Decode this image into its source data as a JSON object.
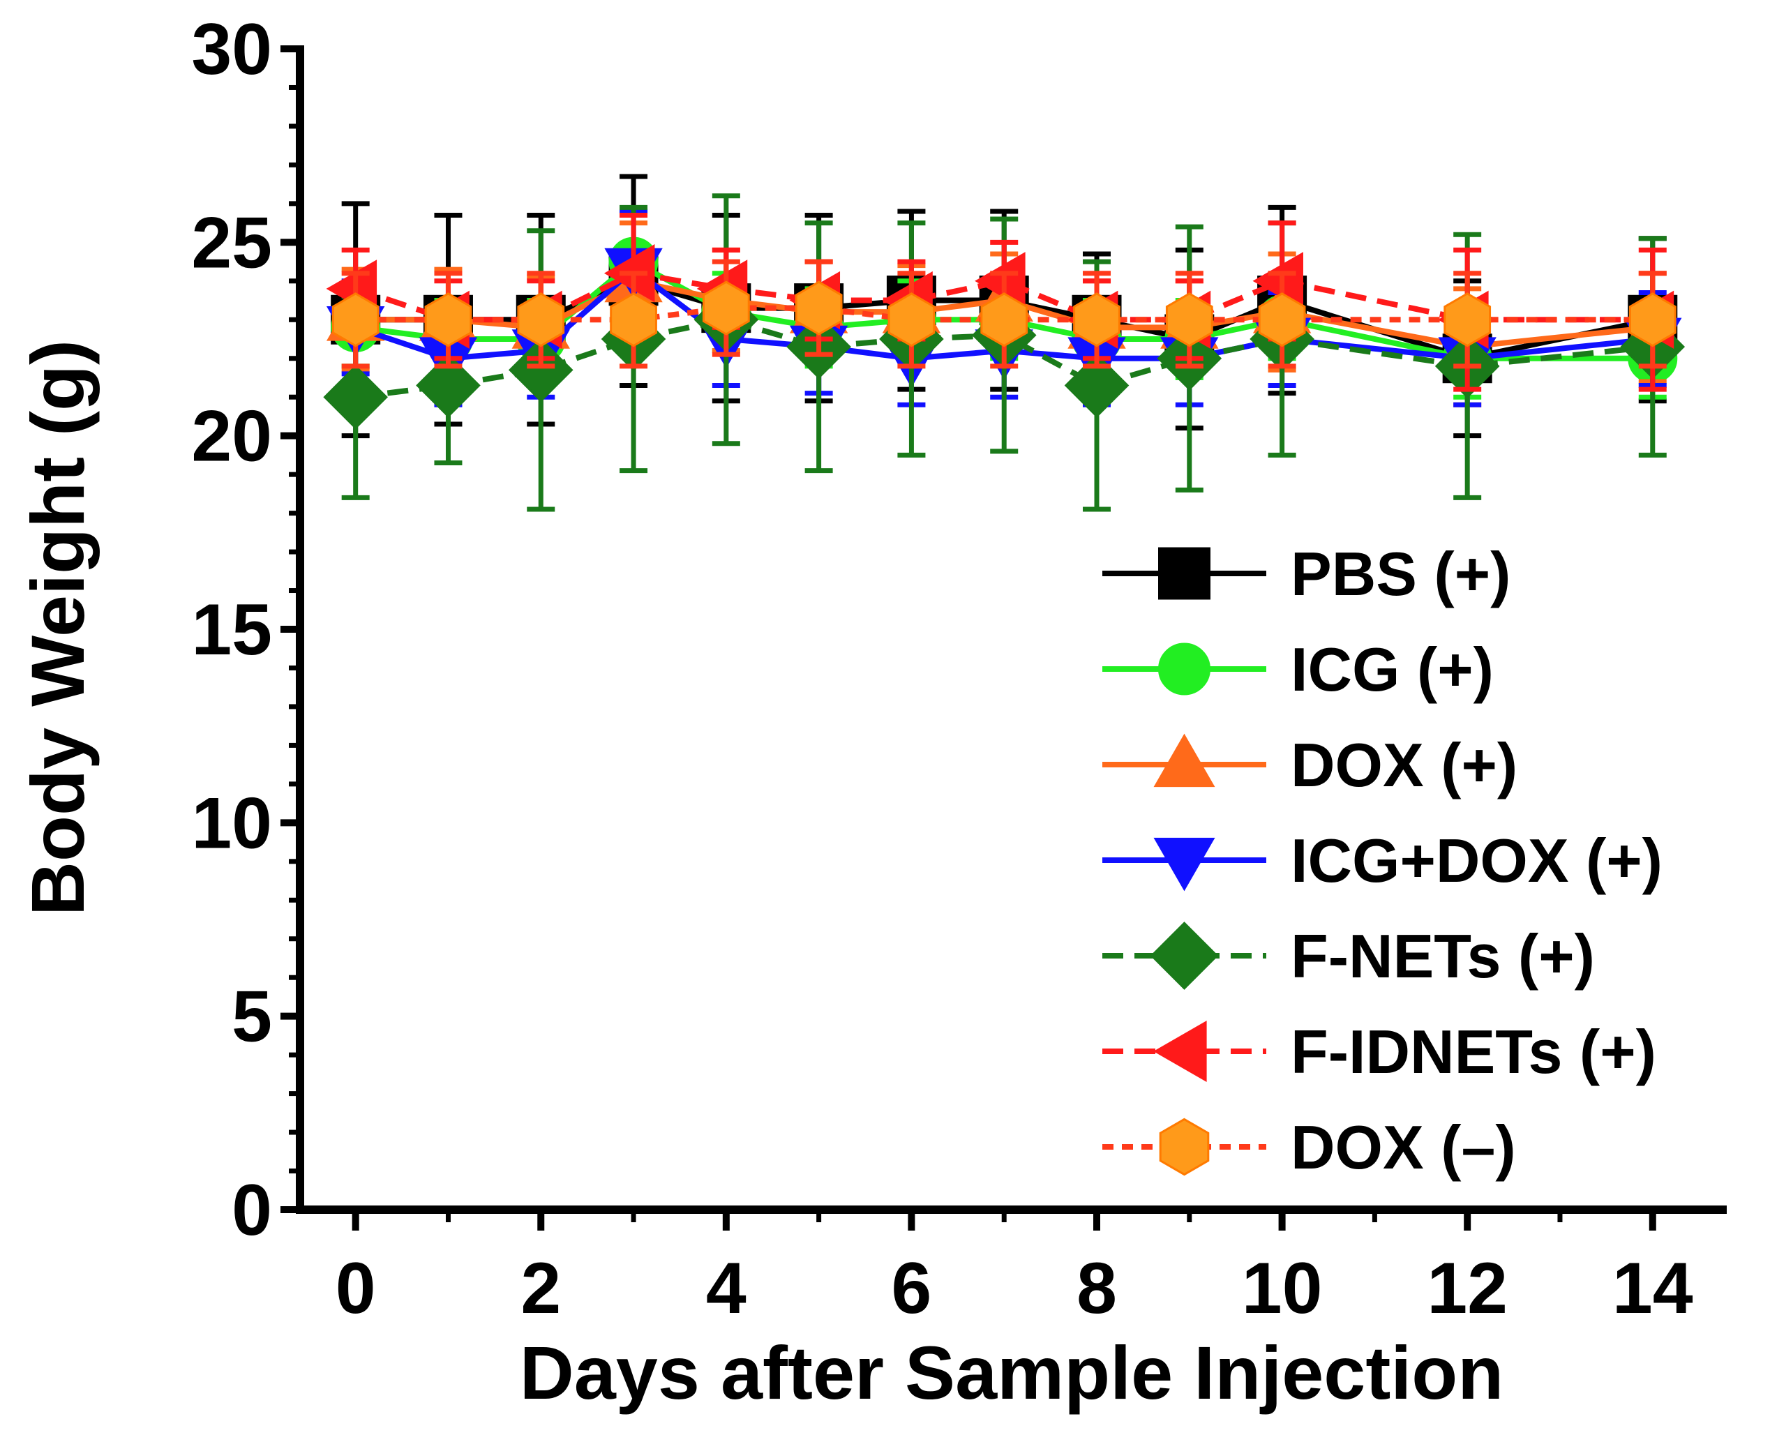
{
  "chart_data": {
    "type": "line",
    "title": "",
    "xlabel": "Days after Sample Injection",
    "ylabel": "Body Weight (g)",
    "xlim": [
      -0.6,
      14.8
    ],
    "ylim": [
      0,
      30
    ],
    "x_ticks": [
      0,
      2,
      4,
      6,
      8,
      10,
      12,
      14
    ],
    "x_tick_labels": [
      "0",
      "2",
      "4",
      "6",
      "8",
      "10",
      "12",
      "14"
    ],
    "y_ticks": [
      0,
      5,
      10,
      15,
      20,
      25,
      30
    ],
    "y_tick_labels": [
      "0",
      "5",
      "10",
      "15",
      "20",
      "25",
      "30"
    ],
    "grid": false,
    "legend_position": "bottom-right",
    "x": [
      0,
      1,
      2,
      3,
      4,
      5,
      6,
      7,
      8,
      9,
      10,
      12,
      14
    ],
    "series": [
      {
        "name": "PBS (+)",
        "color": "#000000",
        "marker": "square",
        "dash": "solid",
        "values": [
          23.0,
          23.0,
          23.0,
          24.0,
          23.3,
          23.3,
          23.5,
          23.5,
          23.0,
          22.5,
          23.5,
          22.0,
          23.0
        ],
        "errors": [
          3.0,
          2.7,
          2.7,
          2.7,
          2.4,
          2.4,
          2.3,
          2.3,
          1.7,
          2.3,
          2.4,
          2.0,
          2.1
        ]
      },
      {
        "name": "ICG (+)",
        "color": "#22ee22",
        "marker": "circle",
        "dash": "solid",
        "values": [
          22.8,
          22.5,
          22.5,
          24.5,
          23.2,
          22.8,
          23.0,
          23.0,
          22.5,
          22.5,
          23.0,
          22.0,
          22.0
        ],
        "errors": [
          1.0,
          1.0,
          1.0,
          1.3,
          1.0,
          1.0,
          1.0,
          1.0,
          1.0,
          1.0,
          1.0,
          1.0,
          1.0
        ]
      },
      {
        "name": "DOX (+)",
        "color": "#ff6a1a",
        "marker": "triangle-up",
        "dash": "solid",
        "values": [
          23.0,
          23.0,
          22.8,
          24.0,
          23.5,
          23.2,
          23.2,
          23.5,
          22.8,
          22.8,
          23.2,
          22.3,
          22.8
        ],
        "errors": [
          1.3,
          1.3,
          1.3,
          1.5,
          1.3,
          1.3,
          1.2,
          1.2,
          1.2,
          1.2,
          1.5,
          1.5,
          1.4
        ]
      },
      {
        "name": "ICG+DOX (+)",
        "color": "#1010ff",
        "marker": "triangle-down",
        "dash": "solid",
        "values": [
          22.8,
          22.0,
          22.2,
          24.3,
          22.5,
          22.3,
          22.0,
          22.2,
          22.0,
          22.0,
          22.5,
          22.0,
          22.5
        ],
        "errors": [
          1.2,
          1.2,
          1.2,
          1.5,
          1.2,
          1.2,
          1.2,
          1.2,
          1.2,
          1.2,
          1.2,
          1.2,
          1.2
        ]
      },
      {
        "name": "F-NETs (+)",
        "color": "#1a7a1a",
        "marker": "diamond",
        "dash": "dashed",
        "values": [
          21.0,
          21.3,
          21.7,
          22.5,
          23.0,
          22.3,
          22.5,
          22.6,
          21.3,
          22.0,
          22.5,
          21.8,
          22.3
        ],
        "errors": [
          2.6,
          2.0,
          3.6,
          3.4,
          3.2,
          3.2,
          3.0,
          3.0,
          3.2,
          3.4,
          3.0,
          3.4,
          2.8
        ]
      },
      {
        "name": "F-IDNETs (+)",
        "color": "#ff1a1a",
        "marker": "triangle-left",
        "dash": "dashed",
        "values": [
          23.8,
          23.0,
          23.0,
          24.2,
          23.8,
          23.5,
          23.5,
          24.0,
          23.0,
          23.0,
          24.0,
          23.0,
          23.0
        ],
        "errors": [
          1.0,
          1.0,
          1.0,
          1.5,
          1.0,
          1.0,
          1.0,
          1.0,
          1.0,
          1.0,
          1.5,
          1.8,
          1.8
        ]
      },
      {
        "name": "DOX (–)",
        "color": "#ff9a1a",
        "line_color": "#ff3a1a",
        "marker": "hexagon",
        "dash": "dotted",
        "values": [
          23.0,
          23.0,
          23.0,
          23.0,
          23.3,
          23.3,
          23.0,
          23.0,
          23.0,
          23.0,
          23.0,
          23.0,
          23.0
        ],
        "errors": [
          1.2,
          1.2,
          1.2,
          1.2,
          1.2,
          1.2,
          1.2,
          1.2,
          1.2,
          1.2,
          1.2,
          1.2,
          1.2
        ]
      }
    ]
  }
}
